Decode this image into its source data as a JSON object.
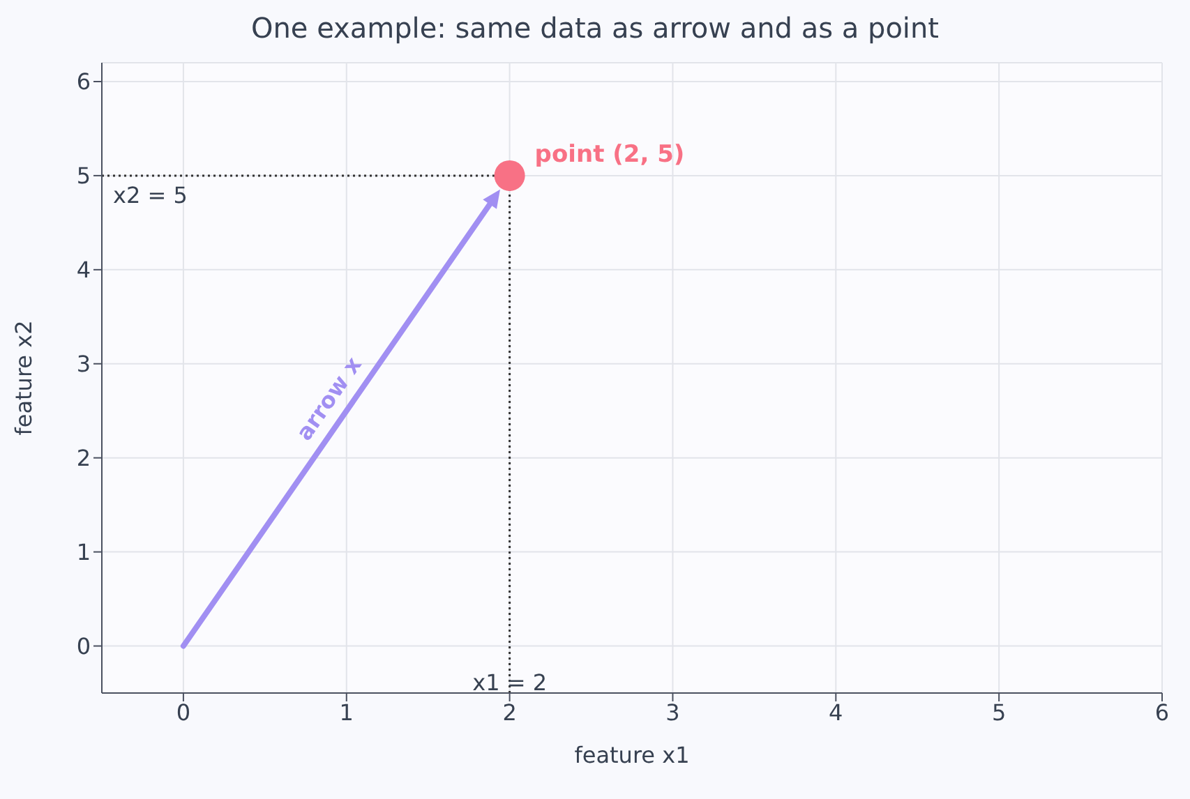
{
  "chart_data": {
    "type": "scatter",
    "title": "One example: same data as arrow and as a point",
    "xlabel": "feature x1",
    "ylabel": "feature x2",
    "xlim": [
      -0.5,
      6
    ],
    "ylim": [
      -0.5,
      6.2
    ],
    "xticks": [
      0,
      1,
      2,
      3,
      4,
      5,
      6
    ],
    "yticks": [
      0,
      1,
      2,
      3,
      4,
      5,
      6
    ],
    "grid": true,
    "series": [
      {
        "x": [
          2
        ],
        "values": [
          5
        ],
        "color": "#f87185",
        "marker": "circle"
      }
    ],
    "ref_lines": [
      {
        "axis": "x",
        "value": 2,
        "label": "x1 = 2",
        "line_style": "dotted",
        "color": "#333333"
      },
      {
        "axis": "y",
        "value": 5,
        "label": "x2 = 5",
        "line_style": "dotted",
        "color": "#333333"
      }
    ],
    "annotations": [
      {
        "text": "point (2, 5)",
        "x": 2,
        "y": 5
      },
      "arrow x"
    ]
  }
}
